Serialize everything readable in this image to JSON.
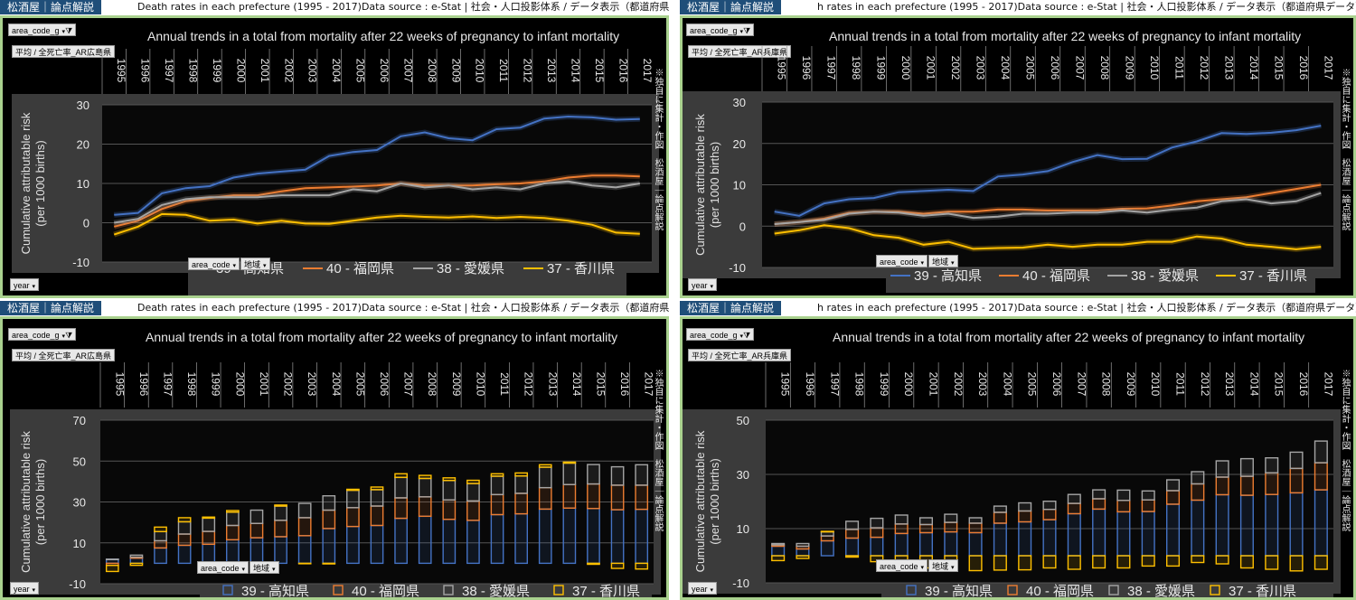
{
  "brand": "松酒屋｜論点解説",
  "header_left": "Death rates in each prefecture (1995 - 2017)Data source : e-Stat | 社会・人口投影体系 / データ表示（都道府県データ）",
  "header_right": "h rates in each prefecture (1995 - 2017)Data source : e-Stat | 社会・人口投影体系 / データ表示（都道府県データ）",
  "chart_title": "Annual trends in a total from mortality after 22 weeks of pregnancy to infant mortality",
  "ylabel_line1": "Cumulative attributable risk",
  "ylabel_line2": "(per 1000 births)",
  "side_note": "※独自に集計・作図　松酒屋｜論点解説",
  "filter_area_code_g": "area_code_g",
  "filter_left": "平均 / 全死亡率_AR広島県",
  "filter_right": "平均 / 全死亡率_AR兵庫県",
  "filter_area_code": "area_code",
  "filter_region": "地域",
  "filter_year": "year",
  "legend": [
    "39 - 高知県",
    "40 - 福岡県",
    "38 - 愛媛県",
    "37 - 香川県"
  ],
  "colors": {
    "kochi": "#4472c4",
    "fukuoka": "#ed7d31",
    "ehime": "#a5a5a5",
    "kagawa": "#ffc000"
  },
  "chart_data": [
    {
      "type": "line",
      "categories": [
        "1995",
        "1996",
        "1997",
        "1998",
        "1999",
        "2000",
        "2001",
        "2002",
        "2003",
        "2004",
        "2005",
        "2006",
        "2007",
        "2008",
        "2009",
        "2010",
        "2011",
        "2012",
        "2013",
        "2014",
        "2015",
        "2016",
        "2017"
      ],
      "ylim": [
        -10,
        30
      ],
      "yticks": [
        -10,
        0,
        10,
        20,
        30
      ],
      "series": [
        {
          "name": "39 - 高知県",
          "values": [
            2,
            2.5,
            7.5,
            8.8,
            9.3,
            11.5,
            12.5,
            13,
            13.5,
            17,
            18,
            18.5,
            22,
            23,
            21.5,
            21,
            23.8,
            24.2,
            26.5,
            27,
            26.8,
            26.2,
            26.4
          ]
        },
        {
          "name": "40 - 福岡県",
          "values": [
            -1,
            0.5,
            3.5,
            5.5,
            6.3,
            7,
            7,
            8,
            8.8,
            9,
            9.2,
            9.5,
            10,
            9.5,
            9.5,
            9.5,
            9.8,
            10,
            10.5,
            11.5,
            12,
            12,
            11.8
          ]
        },
        {
          "name": "38 - 愛媛県",
          "values": [
            0,
            1,
            4.5,
            6,
            6.5,
            6.5,
            6.5,
            7,
            7,
            7,
            8.5,
            8,
            10,
            9,
            9.5,
            8.5,
            9,
            8.5,
            10,
            10.5,
            9.5,
            9,
            10
          ]
        },
        {
          "name": "37 - 香川県",
          "values": [
            -3,
            -1,
            2.2,
            2,
            0.5,
            0.8,
            -0.2,
            0.5,
            -0.2,
            -0.3,
            0.5,
            1.3,
            1.8,
            1.5,
            1.3,
            1.6,
            1.2,
            1.5,
            1.2,
            0.5,
            -0.5,
            -2.5,
            -2.8
          ]
        }
      ]
    },
    {
      "type": "line",
      "categories": [
        "1995",
        "1996",
        "1997",
        "1998",
        "1999",
        "2000",
        "2001",
        "2002",
        "2003",
        "2004",
        "2005",
        "2006",
        "2007",
        "2008",
        "2009",
        "2010",
        "2011",
        "2012",
        "2013",
        "2014",
        "2015",
        "2016",
        "2017"
      ],
      "ylim": [
        -10,
        30
      ],
      "yticks": [
        -10,
        0,
        10,
        20,
        30
      ],
      "series": [
        {
          "name": "39 - 高知県",
          "values": [
            3.5,
            2.5,
            5.5,
            6.5,
            6.8,
            8.2,
            8.5,
            8.8,
            8.5,
            12,
            12.5,
            13.3,
            15.5,
            17.2,
            16.2,
            16.3,
            19,
            20.5,
            22.5,
            22.3,
            22.6,
            23.2,
            24.3
          ]
        },
        {
          "name": "40 - 福岡県",
          "values": [
            0.5,
            1,
            1.8,
            3.2,
            3.5,
            3.5,
            3,
            3.5,
            3.5,
            4,
            4,
            3.8,
            3.8,
            3.8,
            4.2,
            4.3,
            5,
            6,
            6.5,
            7,
            8,
            9,
            10
          ]
        },
        {
          "name": "38 - 愛媛県",
          "values": [
            0.5,
            1,
            1.5,
            3,
            3.5,
            3.3,
            2.5,
            3,
            2,
            2.3,
            3,
            3,
            3.3,
            3.3,
            3.8,
            3.3,
            4,
            4.5,
            6,
            6.5,
            5.5,
            6,
            8
          ]
        },
        {
          "name": "37 - 香川県",
          "values": [
            -1.8,
            -1,
            0.2,
            -0.5,
            -2.2,
            -2.8,
            -4.5,
            -3.8,
            -5.5,
            -5.3,
            -5.2,
            -4.5,
            -5,
            -4.5,
            -4.5,
            -3.8,
            -3.8,
            -2.5,
            -3,
            -4.5,
            -5,
            -5.6,
            -5
          ]
        }
      ]
    },
    {
      "type": "bar",
      "stacked": true,
      "categories": [
        "1995",
        "1996",
        "1997",
        "1998",
        "1999",
        "2000",
        "2001",
        "2002",
        "2003",
        "2004",
        "2005",
        "2006",
        "2007",
        "2008",
        "2009",
        "2010",
        "2011",
        "2012",
        "2013",
        "2014",
        "2015",
        "2016",
        "2017"
      ],
      "ylim": [
        -10,
        70
      ],
      "yticks": [
        -10,
        10,
        30,
        50,
        70
      ],
      "series": [
        {
          "name": "39 - 高知県",
          "values": [
            2,
            2.5,
            7.5,
            8.8,
            9.3,
            11.5,
            12.5,
            13,
            13.5,
            17,
            18,
            18.5,
            22,
            23,
            21.5,
            21,
            23.8,
            24.2,
            26.5,
            27,
            26.8,
            26.2,
            26.4
          ]
        },
        {
          "name": "40 - 福岡県",
          "values": [
            -1,
            0.5,
            3.5,
            5.5,
            6.3,
            7,
            7,
            8,
            8.8,
            9,
            9.2,
            9.5,
            10,
            9.5,
            9.5,
            9.5,
            9.8,
            10,
            10.5,
            11.5,
            12,
            12,
            11.8
          ]
        },
        {
          "name": "38 - 愛媛県",
          "values": [
            0,
            1,
            4.5,
            6,
            6.5,
            6.5,
            6.5,
            7,
            7,
            7,
            8.5,
            8,
            10,
            9,
            9.5,
            8.5,
            9,
            8.5,
            10,
            10.5,
            9.5,
            9,
            10
          ]
        },
        {
          "name": "37 - 香川県",
          "values": [
            -3,
            -1,
            2.2,
            2,
            0.5,
            0.8,
            -0.2,
            0.5,
            -0.2,
            -0.3,
            0.5,
            1.3,
            1.8,
            1.5,
            1.3,
            1.6,
            1.2,
            1.5,
            1.2,
            0.5,
            -0.5,
            -2.5,
            -2.8
          ]
        }
      ]
    },
    {
      "type": "bar",
      "stacked": true,
      "categories": [
        "1995",
        "1996",
        "1997",
        "1998",
        "1999",
        "2000",
        "2001",
        "2002",
        "2003",
        "2004",
        "2005",
        "2006",
        "2007",
        "2008",
        "2009",
        "2010",
        "2011",
        "2012",
        "2013",
        "2014",
        "2015",
        "2016",
        "2017"
      ],
      "ylim": [
        -10,
        50
      ],
      "yticks": [
        -10,
        10,
        30,
        50
      ],
      "series": [
        {
          "name": "39 - 高知県",
          "values": [
            3.5,
            2.5,
            5.5,
            6.5,
            6.8,
            8.2,
            8.5,
            8.8,
            8.5,
            12,
            12.5,
            13.3,
            15.5,
            17.2,
            16.2,
            16.3,
            19,
            20.5,
            22.5,
            22.3,
            22.6,
            23.2,
            24.3
          ]
        },
        {
          "name": "40 - 福岡県",
          "values": [
            0.5,
            1,
            1.8,
            3.2,
            3.5,
            3.5,
            3,
            3.5,
            3.5,
            4,
            4,
            3.8,
            3.8,
            3.8,
            4.2,
            4.3,
            5,
            6,
            6.5,
            7,
            8,
            9,
            10
          ]
        },
        {
          "name": "38 - 愛媛県",
          "values": [
            0.5,
            1,
            1.5,
            3,
            3.5,
            3.3,
            2.5,
            3,
            2,
            2.3,
            3,
            3,
            3.3,
            3.3,
            3.8,
            3.3,
            4,
            4.5,
            6,
            6.5,
            5.5,
            6,
            8
          ]
        },
        {
          "name": "37 - 香川県",
          "values": [
            -1.8,
            -1,
            0.2,
            -0.5,
            -2.2,
            -2.8,
            -4.5,
            -3.8,
            -5.5,
            -5.3,
            -5.2,
            -4.5,
            -5,
            -4.5,
            -4.5,
            -3.8,
            -3.8,
            -2.5,
            -3,
            -4.5,
            -5,
            -5.6,
            -5
          ]
        }
      ]
    }
  ]
}
